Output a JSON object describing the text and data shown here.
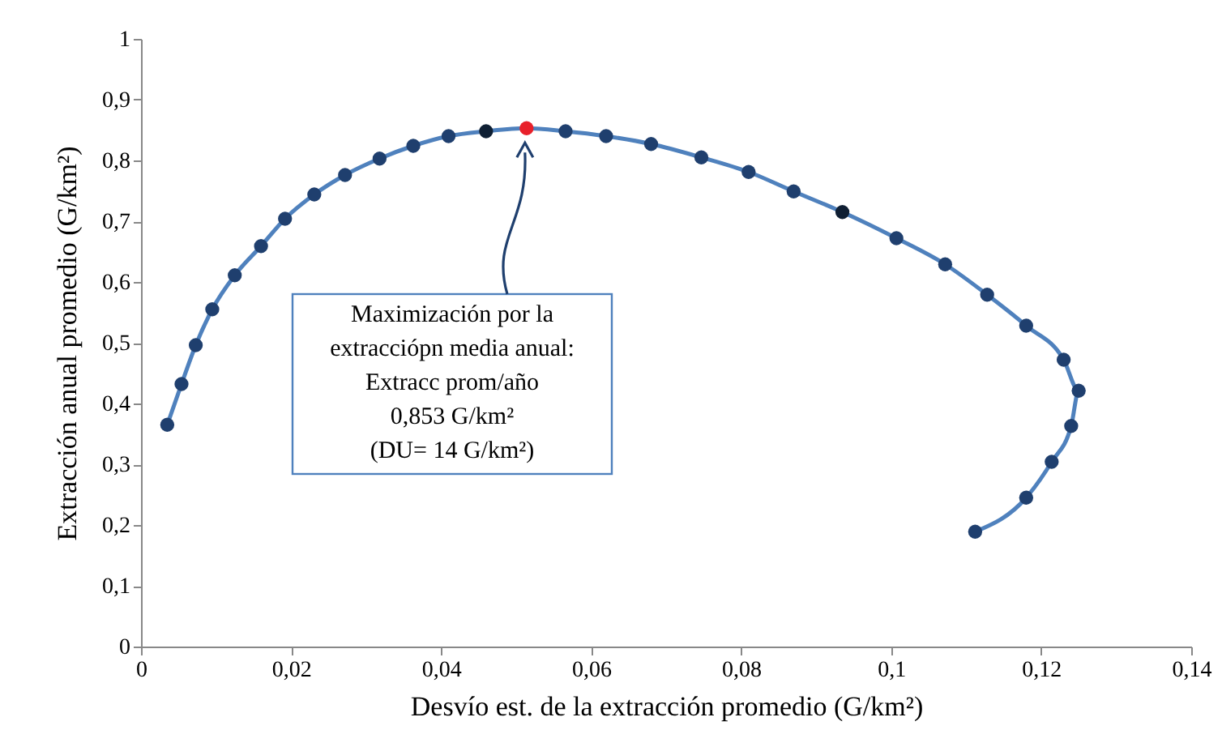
{
  "chart_data": {
    "type": "line",
    "xlabel": "Desvío est. de la extracción promedio  (G/km²)",
    "ylabel": "Extracción anual promedio (G/km²)",
    "xlim": [
      0,
      0.14
    ],
    "ylim": [
      0,
      1
    ],
    "xticks": [
      0,
      {
        "value": 0.02,
        "label": "0,02"
      },
      {
        "value": 0.04,
        "label": "0,04"
      },
      {
        "value": 0.06,
        "label": "0,06"
      },
      {
        "value": 0.08,
        "label": "0,08"
      },
      {
        "value": 0.1,
        "label": "0,1"
      },
      {
        "value": 0.12,
        "label": "0,12"
      },
      {
        "value": 0.14,
        "label": "0,14"
      }
    ],
    "yticks": [
      0,
      {
        "value": 0.1,
        "label": "0,1"
      },
      {
        "value": 0.2,
        "label": "0,2"
      },
      {
        "value": 0.3,
        "label": "0,3"
      },
      {
        "value": 0.4,
        "label": "0,4"
      },
      {
        "value": 0.5,
        "label": "0,5"
      },
      {
        "value": 0.6,
        "label": "0,6"
      },
      {
        "value": 0.7,
        "label": "0,7"
      },
      {
        "value": 0.8,
        "label": "0,8"
      },
      {
        "value": 0.9,
        "label": "0,9"
      },
      1
    ],
    "grid": false,
    "series": [
      {
        "color": "#4f81bd",
        "line_style": "solid",
        "marker": "none",
        "x": [
          0.0035,
          0.0054,
          0.0073,
          0.0095,
          0.0125,
          0.016,
          0.0192,
          0.0231,
          0.0272,
          0.0318,
          0.0363,
          0.041,
          0.046,
          0.0514,
          0.0566,
          0.062,
          0.068,
          0.0747,
          0.081,
          0.087,
          0.0935,
          0.1007,
          0.1072,
          0.1128,
          0.118,
          0.123,
          0.125,
          0.124,
          0.1214,
          0.118,
          0.1112
        ],
        "values": [
          0.365,
          0.432,
          0.496,
          0.555,
          0.611,
          0.659,
          0.704,
          0.744,
          0.776,
          0.803,
          0.824,
          0.84,
          0.848,
          0.853,
          0.848,
          0.84,
          0.827,
          0.805,
          0.781,
          0.749,
          0.715,
          0.672,
          0.629,
          0.579,
          0.528,
          0.472,
          0.421,
          0.363,
          0.304,
          0.245,
          0.189
        ]
      },
      {
        "type": "scatter",
        "marker": "circle",
        "x": [
          0.0035,
          0.0054,
          0.0073,
          0.0095,
          0.0125,
          0.016,
          0.0192,
          0.0231,
          0.0272,
          0.0318,
          0.0363,
          0.041,
          0.046,
          0.0514,
          0.0566,
          0.062,
          0.068,
          0.0747,
          0.081,
          0.087,
          0.0935,
          0.1007,
          0.1072,
          0.1128,
          0.118,
          0.123,
          0.125,
          0.124,
          0.1214,
          0.118,
          0.1112
        ],
        "values": [
          0.365,
          0.432,
          0.496,
          0.555,
          0.611,
          0.659,
          0.704,
          0.744,
          0.776,
          0.803,
          0.824,
          0.84,
          0.848,
          0.853,
          0.848,
          0.84,
          0.827,
          0.805,
          0.781,
          0.749,
          0.715,
          0.672,
          0.629,
          0.579,
          0.528,
          0.472,
          0.421,
          0.363,
          0.304,
          0.245,
          0.189
        ],
        "colors": [
          "#1f3f6e",
          "#1f3f6e",
          "#1f3f6e",
          "#1f3f6e",
          "#1f3f6e",
          "#1f3f6e",
          "#1f3f6e",
          "#1f3f6e",
          "#1f3f6e",
          "#1f3f6e",
          "#1f3f6e",
          "#1f3f6e",
          "#0f1f33",
          "#e8202a",
          "#1f3f6e",
          "#1f3f6e",
          "#1f3f6e",
          "#1f3f6e",
          "#1f3f6e",
          "#1f3f6e",
          "#0f1f33",
          "#1f3f6e",
          "#1f3f6e",
          "#1f3f6e",
          "#1f3f6e",
          "#1f3f6e",
          "#1f3f6e",
          "#1f3f6e",
          "#1f3f6e",
          "#1f3f6e",
          "#1f3f6e"
        ]
      }
    ],
    "annotations": [
      "Maximización por la\nextracciópn media anual:\nExtracc prom/año\n0,853 G/km²\n(DU= 14 G/km²)"
    ]
  }
}
